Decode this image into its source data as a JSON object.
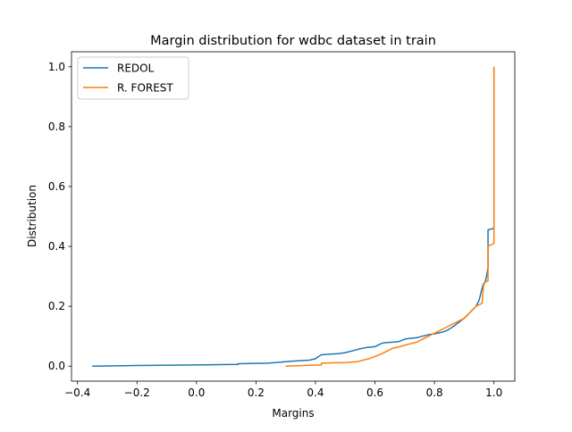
{
  "chart_data": {
    "type": "line",
    "title": "Margin distribution for wdbc dataset in train",
    "xlabel": "Margins",
    "ylabel": "Distribution",
    "xlim": [
      -0.42,
      1.07
    ],
    "ylim": [
      -0.05,
      1.05
    ],
    "xticks": [
      -0.4,
      -0.2,
      0.0,
      0.2,
      0.4,
      0.6,
      0.8,
      1.0
    ],
    "xtick_labels": [
      "−0.4",
      "−0.2",
      "0.0",
      "0.2",
      "0.4",
      "0.6",
      "0.8",
      "1.0"
    ],
    "yticks": [
      0.0,
      0.2,
      0.4,
      0.6,
      0.8,
      1.0
    ],
    "ytick_labels": [
      "0.0",
      "0.2",
      "0.4",
      "0.6",
      "0.8",
      "1.0"
    ],
    "grid": false,
    "legend_position": "top-left",
    "series": [
      {
        "name": "REDOL",
        "color": "#1f77b4",
        "x": [
          -0.35,
          -0.2,
          0.0,
          0.14,
          0.14,
          0.24,
          0.3,
          0.34,
          0.38,
          0.4,
          0.41,
          0.42,
          0.45,
          0.48,
          0.5,
          0.52,
          0.55,
          0.57,
          0.6,
          0.62,
          0.63,
          0.66,
          0.68,
          0.7,
          0.71,
          0.74,
          0.76,
          0.78,
          0.8,
          0.82,
          0.84,
          0.86,
          0.88,
          0.9,
          0.92,
          0.94,
          0.95,
          0.96,
          0.965,
          0.97,
          0.975,
          0.98,
          0.98,
          0.99,
          1.0,
          1.0
        ],
        "y": [
          0.0,
          0.002,
          0.004,
          0.006,
          0.008,
          0.01,
          0.015,
          0.018,
          0.02,
          0.025,
          0.032,
          0.038,
          0.04,
          0.042,
          0.045,
          0.05,
          0.058,
          0.062,
          0.065,
          0.075,
          0.078,
          0.08,
          0.082,
          0.09,
          0.092,
          0.095,
          0.1,
          0.105,
          0.108,
          0.112,
          0.118,
          0.13,
          0.145,
          0.16,
          0.18,
          0.2,
          0.22,
          0.26,
          0.275,
          0.28,
          0.3,
          0.33,
          0.455,
          0.458,
          0.46,
          1.0
        ]
      },
      {
        "name": "R. FOREST",
        "color": "#ff7f0e",
        "x": [
          0.3,
          0.36,
          0.42,
          0.42,
          0.5,
          0.54,
          0.56,
          0.58,
          0.6,
          0.62,
          0.64,
          0.66,
          0.68,
          0.7,
          0.72,
          0.74,
          0.76,
          0.78,
          0.8,
          0.82,
          0.84,
          0.86,
          0.88,
          0.9,
          0.92,
          0.94,
          0.96,
          0.965,
          0.97,
          0.98,
          0.98,
          0.99,
          1.0,
          1.0
        ],
        "y": [
          0.0,
          0.002,
          0.004,
          0.01,
          0.012,
          0.015,
          0.02,
          0.025,
          0.032,
          0.04,
          0.05,
          0.06,
          0.064,
          0.07,
          0.075,
          0.08,
          0.09,
          0.1,
          0.11,
          0.12,
          0.13,
          0.14,
          0.15,
          0.16,
          0.18,
          0.2,
          0.21,
          0.27,
          0.28,
          0.285,
          0.4,
          0.405,
          0.41,
          1.0
        ]
      }
    ]
  }
}
